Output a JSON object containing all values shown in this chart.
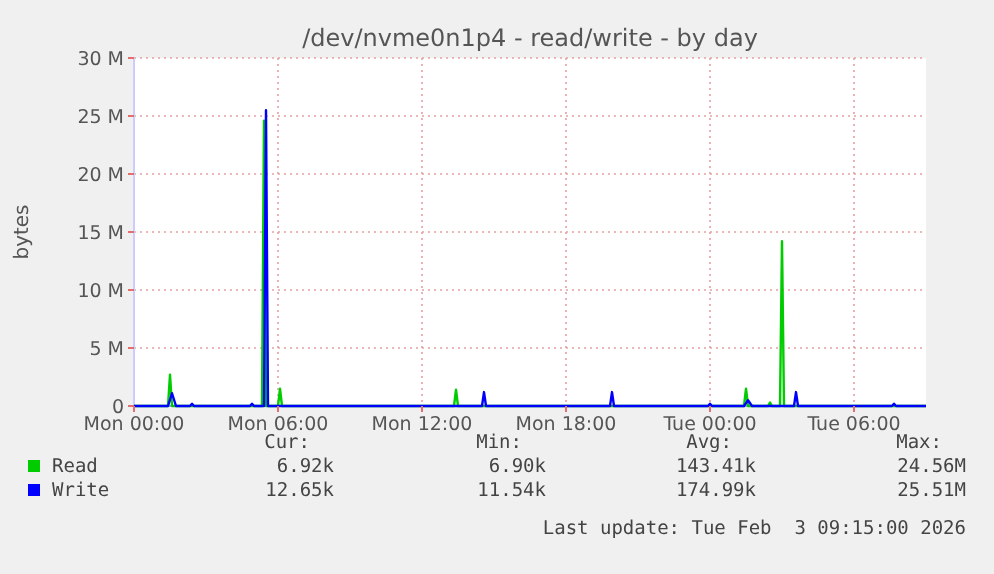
{
  "chart_data": {
    "type": "line",
    "title": "/dev/nvme0n1p4 - read/write - by day",
    "ylabel": "bytes",
    "xlim": [
      "2026-02-02T00:00",
      "2026-02-03T09:00"
    ],
    "xticks": [
      {
        "value": "2026-02-02T00:00",
        "label": "Mon 00:00"
      },
      {
        "value": "2026-02-02T06:00",
        "label": "Mon 06:00"
      },
      {
        "value": "2026-02-02T12:00",
        "label": "Mon 12:00"
      },
      {
        "value": "2026-02-02T18:00",
        "label": "Mon 18:00"
      },
      {
        "value": "2026-02-03T00:00",
        "label": "Tue 00:00"
      },
      {
        "value": "2026-02-03T06:00",
        "label": "Tue 06:00"
      }
    ],
    "ylim": [
      0,
      30
    ],
    "yticks": [
      {
        "value": 0,
        "label": "0"
      },
      {
        "value": 5,
        "label": "5 M"
      },
      {
        "value": 10,
        "label": "10 M"
      },
      {
        "value": 15,
        "label": "15 M"
      },
      {
        "value": 20,
        "label": "20 M"
      },
      {
        "value": 25,
        "label": "25 M"
      },
      {
        "value": 30,
        "label": "30 M"
      }
    ],
    "grid": true,
    "legend": "bottom left",
    "marker": "none",
    "line_style": "solid",
    "series": [
      {
        "name": "Read",
        "color": "#00cc00",
        "x": [
          "2026-02-02T00:00",
          "2026-02-02T01:25",
          "2026-02-02T01:30",
          "2026-02-02T01:35",
          "2026-02-02T05:20",
          "2026-02-02T05:25",
          "2026-02-02T05:30",
          "2026-02-02T06:00",
          "2026-02-02T06:05",
          "2026-02-02T06:10",
          "2026-02-02T13:20",
          "2026-02-02T13:25",
          "2026-02-02T13:30",
          "2026-02-03T01:25",
          "2026-02-03T01:30",
          "2026-02-03T01:35",
          "2026-02-03T02:25",
          "2026-02-03T02:30",
          "2026-02-03T02:35",
          "2026-02-03T02:55",
          "2026-02-03T03:00",
          "2026-02-03T03:05",
          "2026-02-03T09:00"
        ],
        "values": [
          0,
          0,
          2.7,
          0,
          0,
          24.6,
          0,
          0,
          1.5,
          0,
          0,
          1.4,
          0,
          0,
          1.5,
          0,
          0,
          0.3,
          0,
          0,
          14.2,
          0,
          0
        ]
      },
      {
        "name": "Write",
        "color": "#0000ff",
        "x": [
          "2026-02-02T00:00",
          "2026-02-02T01:25",
          "2026-02-02T01:35",
          "2026-02-02T01:45",
          "2026-02-02T02:20",
          "2026-02-02T02:25",
          "2026-02-02T02:30",
          "2026-02-02T04:50",
          "2026-02-02T04:55",
          "2026-02-02T05:00",
          "2026-02-02T05:25",
          "2026-02-02T05:30",
          "2026-02-02T05:35",
          "2026-02-02T14:30",
          "2026-02-02T14:35",
          "2026-02-02T14:40",
          "2026-02-02T19:50",
          "2026-02-02T19:55",
          "2026-02-02T20:00",
          "2026-02-02T23:55",
          "2026-02-03T00:00",
          "2026-02-03T00:05",
          "2026-02-03T01:25",
          "2026-02-03T01:35",
          "2026-02-03T01:45",
          "2026-02-03T03:30",
          "2026-02-03T03:35",
          "2026-02-03T03:40",
          "2026-02-03T07:35",
          "2026-02-03T07:40",
          "2026-02-03T07:45",
          "2026-02-03T09:00"
        ],
        "values": [
          0,
          0,
          1.1,
          0,
          0,
          0.2,
          0,
          0,
          0.2,
          0,
          0,
          25.5,
          0,
          0,
          1.2,
          0,
          0,
          1.2,
          0,
          0,
          0.2,
          0,
          0,
          0.5,
          0,
          0,
          1.2,
          0,
          0,
          0.2,
          0,
          0
        ]
      }
    ],
    "annotations": [
      "Cur:",
      "Min:",
      "Avg:",
      "Max:",
      "6.92k",
      "6.90k",
      "143.41k",
      "24.56M",
      "12.65k",
      "11.54k",
      "174.99k",
      "25.51M",
      "Last update: Tue Feb  3 09:15:00 2026"
    ]
  }
}
